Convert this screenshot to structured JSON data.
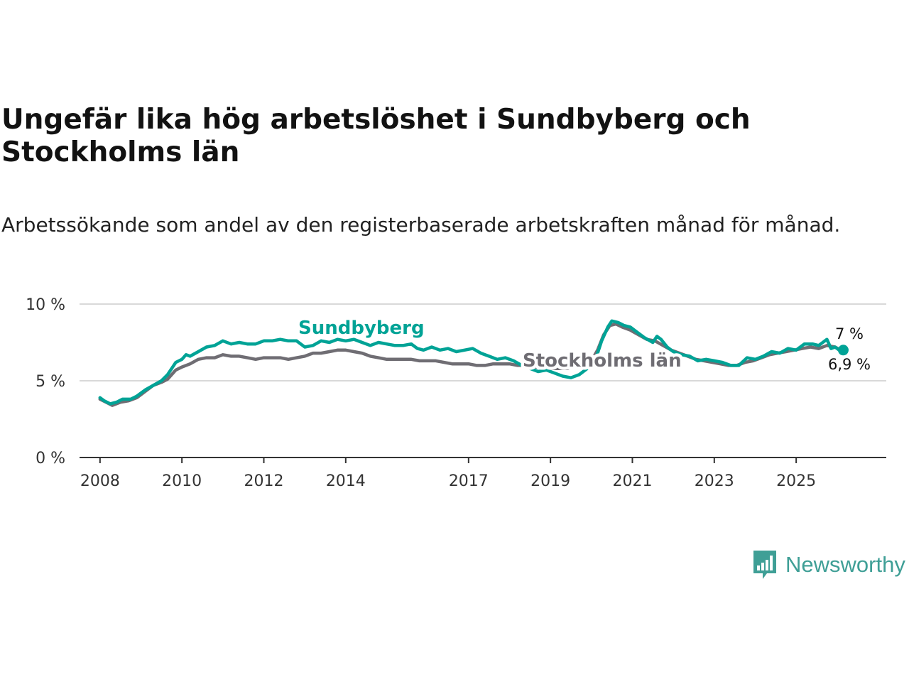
{
  "title": "Ungefär lika hög arbetslöshet i Sundbyberg och Stockholms län",
  "subtitle": "Arbetssökande som andel av den registerbaserade arbetskraften månad för månad.",
  "brand": {
    "name": "Newsworthy",
    "color": "#3f9f96"
  },
  "colors": {
    "sundbyberg": "#00a396",
    "stockholm": "#6f6d73",
    "grid": "#d9d9d9",
    "axis": "#333333"
  },
  "chart_data": {
    "type": "line",
    "title": "Ungefär lika hög arbetslöshet i Sundbyberg och Stockholms län",
    "xlabel": "",
    "ylabel": "",
    "ylim": [
      0,
      10
    ],
    "yticks": [
      {
        "value": 0,
        "label": "0 %"
      },
      {
        "value": 5,
        "label": "5 %"
      },
      {
        "value": 10,
        "label": "10 %"
      }
    ],
    "xlim": [
      2007.5,
      2027.2
    ],
    "xticks": [
      {
        "value": 2008,
        "label": "2008"
      },
      {
        "value": 2010,
        "label": "2010"
      },
      {
        "value": 2012,
        "label": "2012"
      },
      {
        "value": 2014,
        "label": "2014"
      },
      {
        "value": 2017,
        "label": "2017"
      },
      {
        "value": 2019,
        "label": "2019"
      },
      {
        "value": 2021,
        "label": "2021"
      },
      {
        "value": 2023,
        "label": "2023"
      },
      {
        "value": 2025,
        "label": "2025"
      }
    ],
    "series": [
      {
        "name": "Sundbyberg",
        "color": "#00a396",
        "points": [
          [
            2008.0,
            3.9
          ],
          [
            2008.1,
            3.7
          ],
          [
            2008.25,
            3.5
          ],
          [
            2008.4,
            3.6
          ],
          [
            2008.55,
            3.8
          ],
          [
            2008.75,
            3.8
          ],
          [
            2008.9,
            4.0
          ],
          [
            2009.1,
            4.4
          ],
          [
            2009.3,
            4.7
          ],
          [
            2009.5,
            5.0
          ],
          [
            2009.65,
            5.4
          ],
          [
            2009.85,
            6.2
          ],
          [
            2010.0,
            6.4
          ],
          [
            2010.1,
            6.7
          ],
          [
            2010.2,
            6.6
          ],
          [
            2010.4,
            6.9
          ],
          [
            2010.6,
            7.2
          ],
          [
            2010.8,
            7.3
          ],
          [
            2011.0,
            7.6
          ],
          [
            2011.2,
            7.4
          ],
          [
            2011.4,
            7.5
          ],
          [
            2011.6,
            7.4
          ],
          [
            2011.8,
            7.4
          ],
          [
            2012.0,
            7.6
          ],
          [
            2012.2,
            7.6
          ],
          [
            2012.4,
            7.7
          ],
          [
            2012.6,
            7.6
          ],
          [
            2012.8,
            7.6
          ],
          [
            2013.0,
            7.2
          ],
          [
            2013.2,
            7.3
          ],
          [
            2013.4,
            7.6
          ],
          [
            2013.6,
            7.5
          ],
          [
            2013.8,
            7.7
          ],
          [
            2014.0,
            7.6
          ],
          [
            2014.2,
            7.7
          ],
          [
            2014.4,
            7.5
          ],
          [
            2014.6,
            7.3
          ],
          [
            2014.8,
            7.5
          ],
          [
            2015.0,
            7.4
          ],
          [
            2015.2,
            7.3
          ],
          [
            2015.4,
            7.3
          ],
          [
            2015.6,
            7.4
          ],
          [
            2015.75,
            7.1
          ],
          [
            2015.9,
            7.0
          ],
          [
            2016.1,
            7.2
          ],
          [
            2016.3,
            7.0
          ],
          [
            2016.5,
            7.1
          ],
          [
            2016.7,
            6.9
          ],
          [
            2016.9,
            7.0
          ],
          [
            2017.1,
            7.1
          ],
          [
            2017.3,
            6.8
          ],
          [
            2017.5,
            6.6
          ],
          [
            2017.7,
            6.4
          ],
          [
            2017.9,
            6.5
          ],
          [
            2018.1,
            6.3
          ],
          [
            2018.3,
            6.0
          ],
          [
            2018.5,
            5.8
          ],
          [
            2018.7,
            5.6
          ],
          [
            2018.9,
            5.7
          ],
          [
            2019.1,
            5.5
          ],
          [
            2019.3,
            5.3
          ],
          [
            2019.5,
            5.2
          ],
          [
            2019.7,
            5.4
          ],
          [
            2019.9,
            5.8
          ],
          [
            2020.1,
            6.4
          ],
          [
            2020.25,
            7.6
          ],
          [
            2020.4,
            8.5
          ],
          [
            2020.5,
            8.9
          ],
          [
            2020.65,
            8.8
          ],
          [
            2020.8,
            8.6
          ],
          [
            2020.95,
            8.5
          ],
          [
            2021.1,
            8.2
          ],
          [
            2021.3,
            7.8
          ],
          [
            2021.5,
            7.5
          ],
          [
            2021.6,
            7.9
          ],
          [
            2021.7,
            7.7
          ],
          [
            2021.85,
            7.2
          ],
          [
            2022.0,
            6.9
          ],
          [
            2022.2,
            6.7
          ],
          [
            2022.4,
            6.6
          ],
          [
            2022.6,
            6.3
          ],
          [
            2022.8,
            6.4
          ],
          [
            2023.0,
            6.3
          ],
          [
            2023.2,
            6.2
          ],
          [
            2023.4,
            6.0
          ],
          [
            2023.6,
            6.0
          ],
          [
            2023.8,
            6.5
          ],
          [
            2024.0,
            6.4
          ],
          [
            2024.2,
            6.6
          ],
          [
            2024.4,
            6.9
          ],
          [
            2024.6,
            6.8
          ],
          [
            2024.8,
            7.1
          ],
          [
            2025.0,
            7.0
          ],
          [
            2025.2,
            7.4
          ],
          [
            2025.4,
            7.4
          ],
          [
            2025.55,
            7.3
          ],
          [
            2025.65,
            7.5
          ],
          [
            2025.75,
            7.7
          ],
          [
            2025.85,
            7.1
          ],
          [
            2025.95,
            7.2
          ],
          [
            2026.05,
            7.0
          ],
          [
            2026.15,
            7.0
          ]
        ],
        "label": "Sundbyberg",
        "end_label": "7 %"
      },
      {
        "name": "Stockholms län",
        "color": "#6f6d73",
        "points": [
          [
            2008.0,
            3.8
          ],
          [
            2008.15,
            3.6
          ],
          [
            2008.3,
            3.4
          ],
          [
            2008.5,
            3.6
          ],
          [
            2008.7,
            3.7
          ],
          [
            2008.9,
            3.9
          ],
          [
            2009.1,
            4.3
          ],
          [
            2009.3,
            4.7
          ],
          [
            2009.5,
            4.9
          ],
          [
            2009.65,
            5.1
          ],
          [
            2009.85,
            5.7
          ],
          [
            2010.0,
            5.9
          ],
          [
            2010.2,
            6.1
          ],
          [
            2010.4,
            6.4
          ],
          [
            2010.6,
            6.5
          ],
          [
            2010.8,
            6.5
          ],
          [
            2011.0,
            6.7
          ],
          [
            2011.2,
            6.6
          ],
          [
            2011.4,
            6.6
          ],
          [
            2011.6,
            6.5
          ],
          [
            2011.8,
            6.4
          ],
          [
            2012.0,
            6.5
          ],
          [
            2012.2,
            6.5
          ],
          [
            2012.4,
            6.5
          ],
          [
            2012.6,
            6.4
          ],
          [
            2012.8,
            6.5
          ],
          [
            2013.0,
            6.6
          ],
          [
            2013.2,
            6.8
          ],
          [
            2013.4,
            6.8
          ],
          [
            2013.6,
            6.9
          ],
          [
            2013.8,
            7.0
          ],
          [
            2014.0,
            7.0
          ],
          [
            2014.2,
            6.9
          ],
          [
            2014.4,
            6.8
          ],
          [
            2014.6,
            6.6
          ],
          [
            2014.8,
            6.5
          ],
          [
            2015.0,
            6.4
          ],
          [
            2015.2,
            6.4
          ],
          [
            2015.4,
            6.4
          ],
          [
            2015.6,
            6.4
          ],
          [
            2015.8,
            6.3
          ],
          [
            2016.0,
            6.3
          ],
          [
            2016.2,
            6.3
          ],
          [
            2016.4,
            6.2
          ],
          [
            2016.6,
            6.1
          ],
          [
            2016.8,
            6.1
          ],
          [
            2017.0,
            6.1
          ],
          [
            2017.2,
            6.0
          ],
          [
            2017.4,
            6.0
          ],
          [
            2017.6,
            6.1
          ],
          [
            2017.8,
            6.1
          ],
          [
            2018.0,
            6.1
          ],
          [
            2018.2,
            6.0
          ],
          [
            2018.4,
            6.0
          ],
          [
            2018.6,
            5.9
          ],
          [
            2018.8,
            5.9
          ],
          [
            2019.0,
            5.8
          ],
          [
            2019.2,
            5.8
          ],
          [
            2019.4,
            5.8
          ],
          [
            2019.6,
            5.9
          ],
          [
            2019.8,
            6.0
          ],
          [
            2020.0,
            6.3
          ],
          [
            2020.15,
            7.0
          ],
          [
            2020.3,
            8.0
          ],
          [
            2020.45,
            8.6
          ],
          [
            2020.6,
            8.7
          ],
          [
            2020.75,
            8.5
          ],
          [
            2020.95,
            8.3
          ],
          [
            2021.15,
            8.0
          ],
          [
            2021.35,
            7.7
          ],
          [
            2021.55,
            7.6
          ],
          [
            2021.75,
            7.3
          ],
          [
            2021.95,
            7.0
          ],
          [
            2022.15,
            6.8
          ],
          [
            2022.35,
            6.6
          ],
          [
            2022.55,
            6.4
          ],
          [
            2022.75,
            6.3
          ],
          [
            2022.95,
            6.2
          ],
          [
            2023.15,
            6.1
          ],
          [
            2023.35,
            6.0
          ],
          [
            2023.55,
            6.0
          ],
          [
            2023.75,
            6.2
          ],
          [
            2023.95,
            6.3
          ],
          [
            2024.15,
            6.5
          ],
          [
            2024.35,
            6.7
          ],
          [
            2024.55,
            6.8
          ],
          [
            2024.75,
            6.9
          ],
          [
            2024.95,
            7.0
          ],
          [
            2025.15,
            7.1
          ],
          [
            2025.35,
            7.2
          ],
          [
            2025.55,
            7.1
          ],
          [
            2025.75,
            7.3
          ],
          [
            2025.95,
            7.2
          ],
          [
            2026.15,
            6.9
          ]
        ],
        "label": "Stockholms län",
        "end_label": "6,9 %"
      }
    ]
  }
}
